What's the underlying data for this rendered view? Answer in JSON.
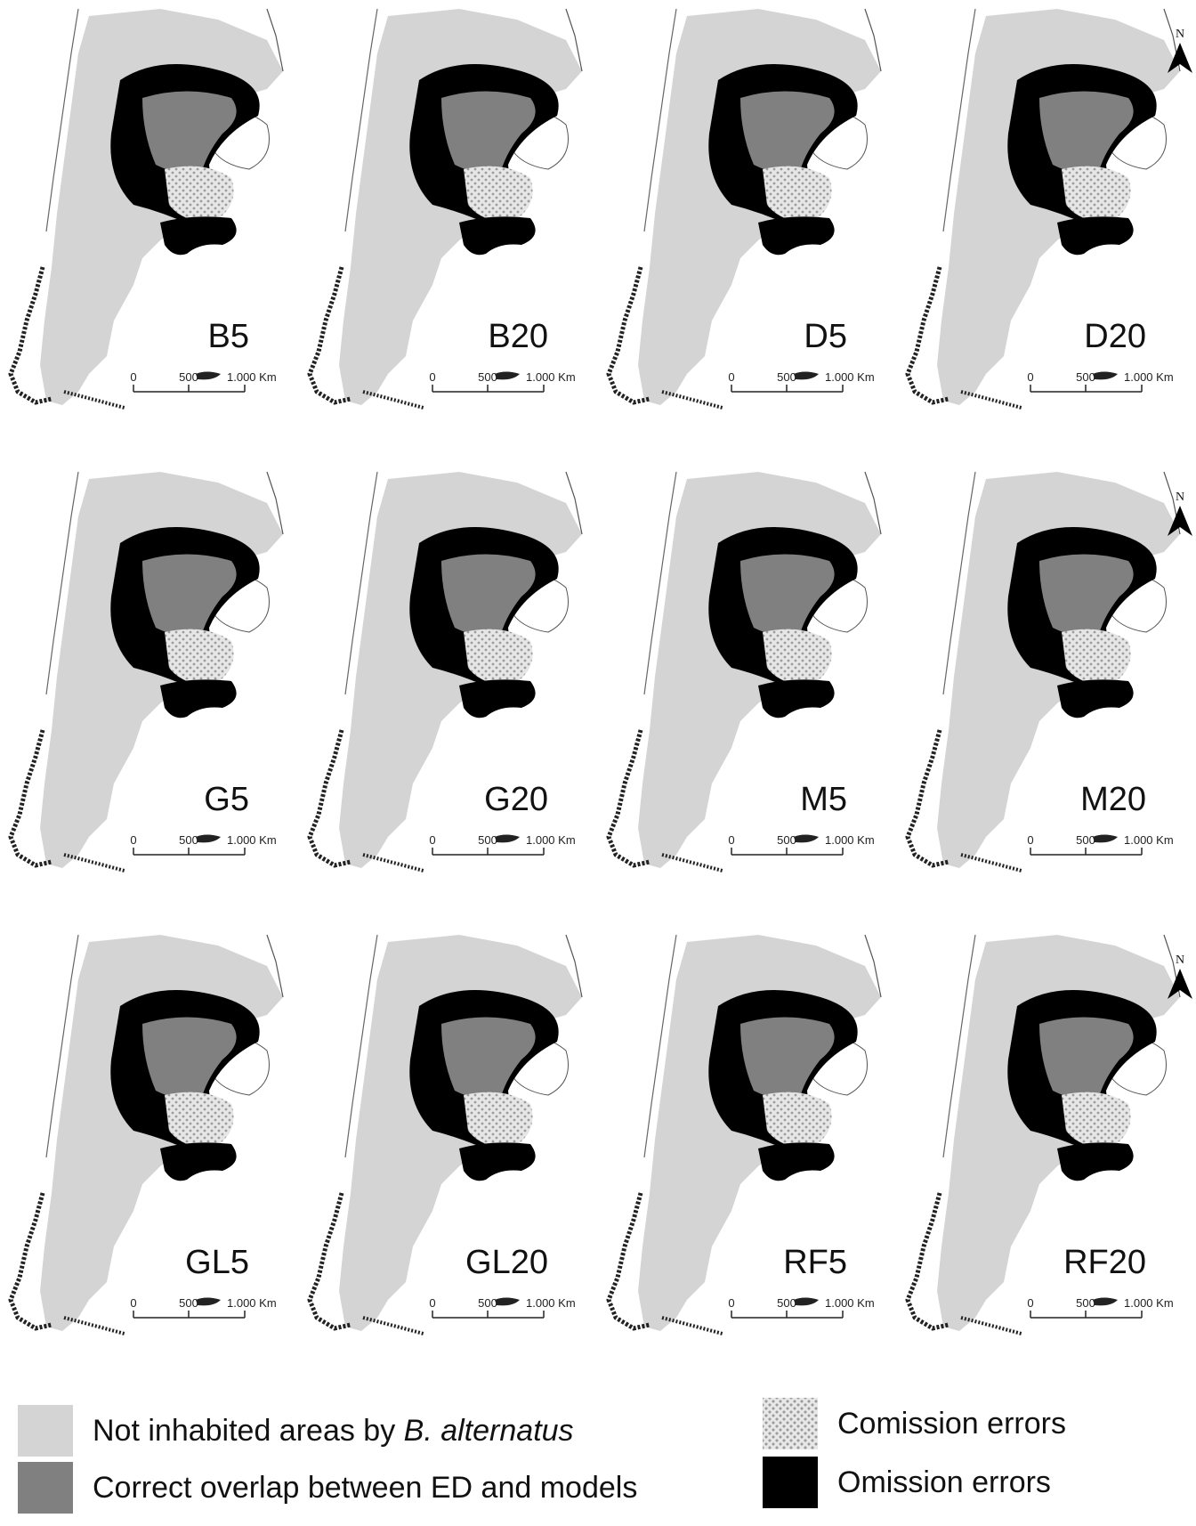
{
  "panels": [
    {
      "label": "B5",
      "north": false
    },
    {
      "label": "B20",
      "north": false
    },
    {
      "label": "D5",
      "north": false
    },
    {
      "label": "D20",
      "north": true
    },
    {
      "label": "G5",
      "north": false
    },
    {
      "label": "G20",
      "north": false
    },
    {
      "label": "M5",
      "north": false
    },
    {
      "label": "M20",
      "north": true
    },
    {
      "label": "GL5",
      "north": false
    },
    {
      "label": "GL20",
      "north": false
    },
    {
      "label": "RF5",
      "north": false
    },
    {
      "label": "RF20",
      "north": true
    }
  ],
  "scale_bar": {
    "tick_0": "0",
    "tick_500": "500",
    "tick_1000": "1.000 Km"
  },
  "north_label": "N",
  "legend": {
    "not_inhabited_prefix": "Not inhabited areas by ",
    "not_inhabited_species": "B. alternatus",
    "correct_overlap": "Correct overlap between ED and models",
    "comission": "Comission errors",
    "omission": "Omission errors"
  },
  "colors": {
    "not_inhabited": "#d4d4d4",
    "correct_overlap": "#808080",
    "omission": "#000000",
    "comission_dots": "#9c9c9c"
  }
}
